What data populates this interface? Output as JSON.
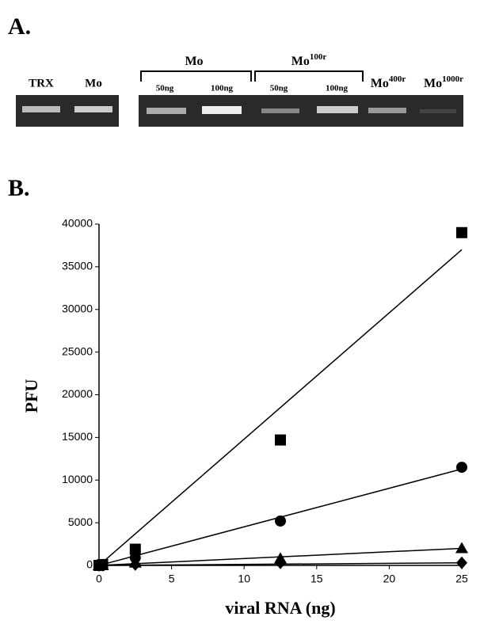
{
  "panel_a": {
    "label": "A.",
    "lanes": [
      "TRX",
      "Mo"
    ],
    "groups": [
      {
        "base": "Mo",
        "sup": null,
        "lanes": [
          "50ng",
          "100ng"
        ]
      },
      {
        "base": "Mo",
        "sup": "100r",
        "lanes": [
          "50ng",
          "100ng"
        ]
      }
    ],
    "extra_lanes": [
      {
        "base": "Mo",
        "sup": "400r"
      },
      {
        "base": "Mo",
        "sup": "1000r"
      }
    ]
  },
  "chart_data": {
    "type": "scatter",
    "panel_label": "B.",
    "x_label": "viral RNA (ng)",
    "y_label": "PFU",
    "x": [
      0,
      0.25,
      2.5,
      12.5,
      25
    ],
    "series": [
      {
        "marker": "square",
        "color": "#000000",
        "values": [
          0,
          100,
          1900,
          14700,
          39000
        ],
        "fit_x": [
          0,
          25
        ],
        "fit_values": [
          0,
          37000
        ]
      },
      {
        "marker": "circle",
        "color": "#000000",
        "values": [
          0,
          50,
          900,
          5200,
          11500
        ],
        "fit_x": [
          0,
          25
        ],
        "fit_values": [
          0,
          11300
        ]
      },
      {
        "marker": "triangle",
        "color": "#000000",
        "values": [
          0,
          20,
          300,
          800,
          2000
        ],
        "fit_x": [
          0,
          25
        ],
        "fit_values": [
          0,
          2000
        ]
      },
      {
        "marker": "diamond",
        "color": "#000000",
        "values": [
          0,
          10,
          100,
          300,
          300
        ],
        "fit_x": [
          0,
          25
        ],
        "fit_values": [
          0,
          300
        ]
      }
    ],
    "xlim": [
      0,
      25
    ],
    "xticks": [
      0,
      5,
      10,
      15,
      20,
      25
    ],
    "ylim": [
      0,
      40000
    ],
    "yticks": [
      0,
      5000,
      10000,
      15000,
      20000,
      25000,
      30000,
      35000,
      40000
    ],
    "grid": false
  }
}
